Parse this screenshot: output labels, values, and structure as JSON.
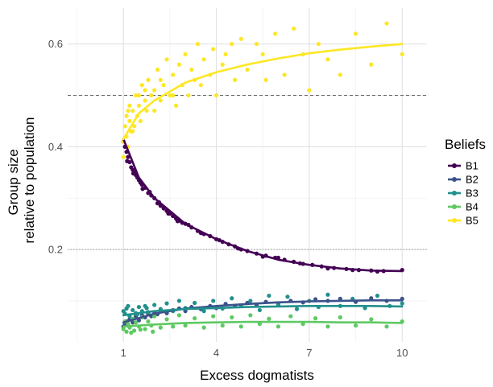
{
  "chart_data": {
    "type": "scatter",
    "xlabel": "Excess dogmatists",
    "ylabel": [
      "Group size",
      "relative to population"
    ],
    "xlim": [
      -0.8,
      10.8
    ],
    "ylim": [
      0.02,
      0.67
    ],
    "x_ticks": [
      1,
      4,
      7,
      10
    ],
    "x_tick_labels": [
      "1",
      "4",
      "7",
      "10"
    ],
    "y_ticks": [
      0.2,
      0.4,
      0.6
    ],
    "y_tick_labels": [
      "0.2",
      "0.4",
      "0.6"
    ],
    "x_minor_gridlines": [
      -0.5,
      2.5,
      5.5,
      8.5
    ],
    "y_minor_gridlines": [
      0.1,
      0.3,
      0.5
    ],
    "grid": true,
    "reference_lines": [
      {
        "y": 0.5,
        "style": "dashed",
        "color": "#666666"
      },
      {
        "y": 0.2,
        "style": "dotted",
        "color": "#999999"
      }
    ],
    "legend": {
      "title": "Beliefs",
      "position": "right"
    },
    "series": [
      {
        "name": "B1",
        "color": "#440154",
        "trend": [
          [
            1,
            0.415
          ],
          [
            1.5,
            0.34
          ],
          [
            2,
            0.3
          ],
          [
            3,
            0.25
          ],
          [
            4,
            0.22
          ],
          [
            5,
            0.197
          ],
          [
            6,
            0.18
          ],
          [
            7,
            0.17
          ],
          [
            8,
            0.163
          ],
          [
            9,
            0.159
          ],
          [
            10,
            0.158
          ]
        ],
        "points": [
          [
            1.0,
            0.41
          ],
          [
            1.05,
            0.4
          ],
          [
            1.1,
            0.39
          ],
          [
            1.15,
            0.38
          ],
          [
            1.2,
            0.37
          ],
          [
            1.25,
            0.36
          ],
          [
            1.3,
            0.355
          ],
          [
            1.35,
            0.35
          ],
          [
            1.4,
            0.345
          ],
          [
            1.45,
            0.34
          ],
          [
            1.5,
            0.335
          ],
          [
            1.55,
            0.33
          ],
          [
            1.6,
            0.326
          ],
          [
            1.7,
            0.32
          ],
          [
            1.8,
            0.31
          ],
          [
            1.9,
            0.305
          ],
          [
            2.0,
            0.3
          ],
          [
            2.1,
            0.29
          ],
          [
            2.2,
            0.285
          ],
          [
            2.3,
            0.28
          ],
          [
            2.4,
            0.275
          ],
          [
            2.5,
            0.27
          ],
          [
            2.6,
            0.265
          ],
          [
            2.7,
            0.26
          ],
          [
            2.8,
            0.256
          ],
          [
            2.9,
            0.252
          ],
          [
            3.0,
            0.25
          ],
          [
            3.2,
            0.243
          ],
          [
            3.4,
            0.236
          ],
          [
            3.6,
            0.23
          ],
          [
            3.8,
            0.226
          ],
          [
            4.0,
            0.22
          ],
          [
            4.2,
            0.215
          ],
          [
            4.4,
            0.21
          ],
          [
            4.6,
            0.206
          ],
          [
            4.8,
            0.2
          ],
          [
            5.0,
            0.197
          ],
          [
            5.3,
            0.192
          ],
          [
            5.6,
            0.188
          ],
          [
            5.9,
            0.184
          ],
          [
            6.2,
            0.18
          ],
          [
            6.5,
            0.176
          ],
          [
            6.8,
            0.172
          ],
          [
            7.1,
            0.17
          ],
          [
            7.4,
            0.167
          ],
          [
            7.8,
            0.164
          ],
          [
            8.2,
            0.162
          ],
          [
            8.6,
            0.16
          ],
          [
            9.0,
            0.159
          ],
          [
            9.4,
            0.158
          ],
          [
            10.0,
            0.16
          ],
          [
            1.12,
            0.372
          ],
          [
            1.32,
            0.348
          ],
          [
            1.62,
            0.318
          ],
          [
            1.85,
            0.312
          ],
          [
            2.15,
            0.292
          ],
          [
            2.45,
            0.27
          ],
          [
            2.75,
            0.255
          ],
          [
            3.1,
            0.248
          ],
          [
            3.5,
            0.232
          ],
          [
            4.1,
            0.218
          ],
          [
            4.7,
            0.202
          ],
          [
            5.5,
            0.186
          ],
          [
            6.0,
            0.184
          ],
          [
            6.7,
            0.173
          ],
          [
            7.6,
            0.163
          ],
          [
            8.4,
            0.16
          ],
          [
            9.2,
            0.157
          ]
        ]
      },
      {
        "name": "B2",
        "color": "#3b528b",
        "trend": [
          [
            1,
            0.058
          ],
          [
            2,
            0.075
          ],
          [
            3,
            0.085
          ],
          [
            4,
            0.09
          ],
          [
            5,
            0.094
          ],
          [
            6,
            0.097
          ],
          [
            7,
            0.099
          ],
          [
            8,
            0.1
          ],
          [
            9,
            0.101
          ],
          [
            10,
            0.101
          ]
        ],
        "points": [
          [
            1.0,
            0.05
          ],
          [
            1.05,
            0.055
          ],
          [
            1.1,
            0.06
          ],
          [
            1.15,
            0.052
          ],
          [
            1.2,
            0.064
          ],
          [
            1.3,
            0.058
          ],
          [
            1.4,
            0.07
          ],
          [
            1.5,
            0.062
          ],
          [
            1.6,
            0.072
          ],
          [
            1.7,
            0.068
          ],
          [
            1.8,
            0.075
          ],
          [
            1.9,
            0.07
          ],
          [
            2.0,
            0.078
          ],
          [
            2.1,
            0.074
          ],
          [
            2.2,
            0.08
          ],
          [
            2.4,
            0.076
          ],
          [
            2.6,
            0.082
          ],
          [
            2.8,
            0.085
          ],
          [
            3.0,
            0.08
          ],
          [
            3.2,
            0.088
          ],
          [
            3.5,
            0.084
          ],
          [
            3.8,
            0.09
          ],
          [
            4.0,
            0.086
          ],
          [
            4.3,
            0.094
          ],
          [
            4.6,
            0.09
          ],
          [
            5.0,
            0.096
          ],
          [
            5.3,
            0.092
          ],
          [
            5.6,
            0.098
          ],
          [
            6.0,
            0.095
          ],
          [
            6.4,
            0.1
          ],
          [
            6.8,
            0.097
          ],
          [
            7.2,
            0.103
          ],
          [
            7.6,
            0.1
          ],
          [
            8.0,
            0.104
          ],
          [
            8.5,
            0.098
          ],
          [
            9.0,
            0.105
          ],
          [
            9.5,
            0.1
          ],
          [
            10.0,
            0.104
          ]
        ]
      },
      {
        "name": "B3",
        "color": "#21908c",
        "trend": [
          [
            1,
            0.072
          ],
          [
            2,
            0.08
          ],
          [
            3,
            0.084
          ],
          [
            4,
            0.086
          ],
          [
            5,
            0.088
          ],
          [
            6,
            0.089
          ],
          [
            7,
            0.09
          ],
          [
            8,
            0.09
          ],
          [
            9,
            0.09
          ],
          [
            10,
            0.089
          ]
        ],
        "points": [
          [
            1.0,
            0.08
          ],
          [
            1.05,
            0.075
          ],
          [
            1.1,
            0.085
          ],
          [
            1.2,
            0.07
          ],
          [
            1.3,
            0.082
          ],
          [
            1.4,
            0.076
          ],
          [
            1.5,
            0.088
          ],
          [
            1.6,
            0.08
          ],
          [
            1.7,
            0.09
          ],
          [
            1.8,
            0.078
          ],
          [
            2.0,
            0.092
          ],
          [
            2.2,
            0.084
          ],
          [
            2.4,
            0.095
          ],
          [
            2.6,
            0.08
          ],
          [
            2.8,
            0.1
          ],
          [
            3.0,
            0.086
          ],
          [
            3.3,
            0.096
          ],
          [
            3.6,
            0.08
          ],
          [
            3.9,
            0.1
          ],
          [
            4.2,
            0.085
          ],
          [
            4.5,
            0.105
          ],
          [
            4.8,
            0.09
          ],
          [
            5.1,
            0.1
          ],
          [
            5.4,
            0.082
          ],
          [
            5.7,
            0.11
          ],
          [
            6.0,
            0.092
          ],
          [
            6.3,
            0.108
          ],
          [
            6.6,
            0.084
          ],
          [
            7.0,
            0.1
          ],
          [
            7.3,
            0.088
          ],
          [
            7.6,
            0.112
          ],
          [
            8.0,
            0.09
          ],
          [
            8.4,
            0.104
          ],
          [
            8.8,
            0.086
          ],
          [
            9.2,
            0.11
          ],
          [
            9.6,
            0.09
          ],
          [
            10.0,
            0.095
          ],
          [
            1.15,
            0.09
          ],
          [
            1.45,
            0.074
          ],
          [
            1.75,
            0.086
          ]
        ]
      },
      {
        "name": "B4",
        "color": "#5ec962",
        "trend": [
          [
            1,
            0.05
          ],
          [
            2,
            0.054
          ],
          [
            3,
            0.057
          ],
          [
            4,
            0.058
          ],
          [
            5,
            0.059
          ],
          [
            6,
            0.059
          ],
          [
            7,
            0.059
          ],
          [
            8,
            0.058
          ],
          [
            9,
            0.058
          ],
          [
            10,
            0.057
          ]
        ],
        "points": [
          [
            1.0,
            0.045
          ],
          [
            1.05,
            0.06
          ],
          [
            1.1,
            0.04
          ],
          [
            1.15,
            0.055
          ],
          [
            1.2,
            0.048
          ],
          [
            1.3,
            0.065
          ],
          [
            1.35,
            0.042
          ],
          [
            1.4,
            0.058
          ],
          [
            1.5,
            0.05
          ],
          [
            1.6,
            0.068
          ],
          [
            1.7,
            0.045
          ],
          [
            1.8,
            0.06
          ],
          [
            1.9,
            0.052
          ],
          [
            2.0,
            0.07
          ],
          [
            2.2,
            0.048
          ],
          [
            2.4,
            0.064
          ],
          [
            2.6,
            0.05
          ],
          [
            2.8,
            0.072
          ],
          [
            3.0,
            0.052
          ],
          [
            3.3,
            0.066
          ],
          [
            3.6,
            0.048
          ],
          [
            3.9,
            0.07
          ],
          [
            4.2,
            0.052
          ],
          [
            4.5,
            0.068
          ],
          [
            4.8,
            0.05
          ],
          [
            5.1,
            0.072
          ],
          [
            5.4,
            0.055
          ],
          [
            5.7,
            0.065
          ],
          [
            6.0,
            0.05
          ],
          [
            6.4,
            0.07
          ],
          [
            6.8,
            0.055
          ],
          [
            7.2,
            0.066
          ],
          [
            7.6,
            0.05
          ],
          [
            8.0,
            0.068
          ],
          [
            8.5,
            0.052
          ],
          [
            9.0,
            0.064
          ],
          [
            9.5,
            0.05
          ],
          [
            10.0,
            0.06
          ],
          [
            1.25,
            0.038
          ],
          [
            1.55,
            0.044
          ],
          [
            1.95,
            0.04
          ]
        ]
      },
      {
        "name": "B5",
        "color": "#fde725",
        "trend": [
          [
            1,
            0.415
          ],
          [
            1.5,
            0.465
          ],
          [
            2,
            0.49
          ],
          [
            3,
            0.525
          ],
          [
            4,
            0.545
          ],
          [
            5,
            0.56
          ],
          [
            6,
            0.572
          ],
          [
            7,
            0.582
          ],
          [
            8,
            0.589
          ],
          [
            9,
            0.595
          ],
          [
            10,
            0.6
          ]
        ],
        "points": [
          [
            1.0,
            0.41
          ],
          [
            1.0,
            0.38
          ],
          [
            1.05,
            0.44
          ],
          [
            1.1,
            0.42
          ],
          [
            1.1,
            0.46
          ],
          [
            1.15,
            0.4
          ],
          [
            1.2,
            0.45
          ],
          [
            1.2,
            0.48
          ],
          [
            1.25,
            0.43
          ],
          [
            1.3,
            0.47
          ],
          [
            1.35,
            0.44
          ],
          [
            1.4,
            0.5
          ],
          [
            1.45,
            0.46
          ],
          [
            1.5,
            0.48
          ],
          [
            1.55,
            0.45
          ],
          [
            1.6,
            0.52
          ],
          [
            1.7,
            0.49
          ],
          [
            1.75,
            0.47
          ],
          [
            1.8,
            0.53
          ],
          [
            1.9,
            0.5
          ],
          [
            2.0,
            0.51
          ],
          [
            2.0,
            0.47
          ],
          [
            2.1,
            0.55
          ],
          [
            2.2,
            0.49
          ],
          [
            2.3,
            0.52
          ],
          [
            2.4,
            0.57
          ],
          [
            2.5,
            0.5
          ],
          [
            2.6,
            0.54
          ],
          [
            2.7,
            0.48
          ],
          [
            2.8,
            0.56
          ],
          [
            2.9,
            0.52
          ],
          [
            3.0,
            0.58
          ],
          [
            3.1,
            0.5
          ],
          [
            3.2,
            0.55
          ],
          [
            3.4,
            0.6
          ],
          [
            3.5,
            0.52
          ],
          [
            3.6,
            0.57
          ],
          [
            3.8,
            0.54
          ],
          [
            3.9,
            0.59
          ],
          [
            4.0,
            0.5
          ],
          [
            4.2,
            0.56
          ],
          [
            4.5,
            0.6
          ],
          [
            4.6,
            0.53
          ],
          [
            4.8,
            0.61
          ],
          [
            5.0,
            0.55
          ],
          [
            5.3,
            0.6
          ],
          [
            5.6,
            0.53
          ],
          [
            5.9,
            0.62
          ],
          [
            6.2,
            0.54
          ],
          [
            6.5,
            0.63
          ],
          [
            7.0,
            0.51
          ],
          [
            7.3,
            0.6
          ],
          [
            7.6,
            0.57
          ],
          [
            8.0,
            0.54
          ],
          [
            8.5,
            0.62
          ],
          [
            9.0,
            0.56
          ],
          [
            9.5,
            0.64
          ],
          [
            10.0,
            0.58
          ],
          [
            1.15,
            0.47
          ],
          [
            1.3,
            0.43
          ],
          [
            1.5,
            0.5
          ],
          [
            1.7,
            0.51
          ],
          [
            2.2,
            0.53
          ],
          [
            2.6,
            0.5
          ],
          [
            3.3,
            0.53
          ],
          [
            4.3,
            0.58
          ],
          [
            5.5,
            0.58
          ],
          [
            6.8,
            0.58
          ]
        ]
      }
    ]
  }
}
